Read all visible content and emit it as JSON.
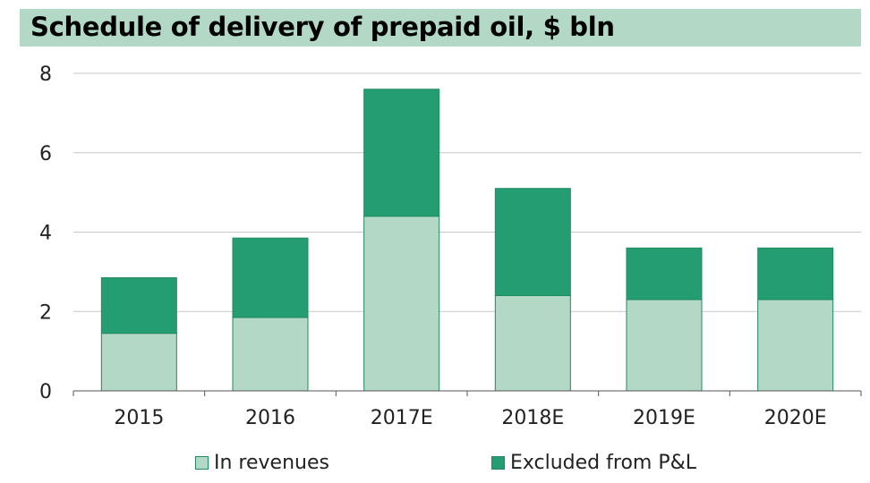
{
  "title": "Schedule of delivery of prepaid oil, $ bln",
  "colors": {
    "title_bg": "#b3d9c6",
    "in_revenues": "#b3d9c6",
    "excluded": "#259d72",
    "bar_border": "#1f8a60"
  },
  "chart_data": {
    "type": "bar",
    "stacked": true,
    "title": "Schedule of delivery of prepaid oil, $ bln",
    "categories": [
      "2015",
      "2016",
      "2017E",
      "2018E",
      "2019E",
      "2020E"
    ],
    "series": [
      {
        "name": "In revenues",
        "values": [
          1.45,
          1.85,
          4.4,
          2.4,
          2.3,
          2.3
        ]
      },
      {
        "name": "Excluded from P&L",
        "values": [
          1.4,
          2.0,
          3.2,
          2.7,
          1.3,
          1.3
        ]
      }
    ],
    "ylim": [
      0,
      8
    ],
    "yticks": [
      "0",
      "2",
      "4",
      "6",
      "8"
    ],
    "grid": true,
    "legend": "bottom"
  }
}
